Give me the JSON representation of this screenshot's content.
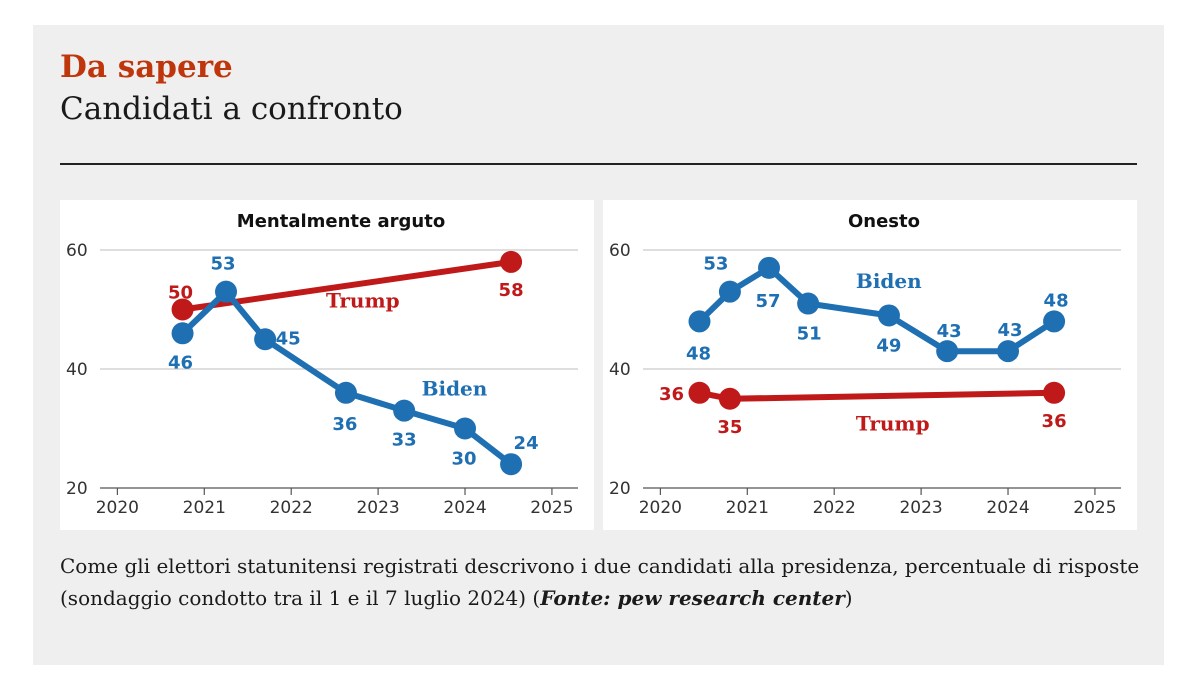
{
  "header": {
    "kicker": "Da sapere",
    "title": "Candidati a confronto"
  },
  "caption": {
    "text": "Come gli elettori statunitensi registrati descrivono i due candidati alla presidenza, percentuale di risposte (sondaggio condotto tra il 1 e il 7 luglio 2024) (",
    "source": "Fonte: pew research center",
    "close": ")"
  },
  "colors": {
    "trump": "#c01919",
    "biden": "#1f6fb3",
    "accent": "#c0360c"
  },
  "chart_data": [
    {
      "type": "line",
      "title": "Mentalmente arguto",
      "x_ticks": [
        2020,
        2021,
        2022,
        2023,
        2024,
        2025
      ],
      "y_ticks": [
        20,
        40,
        60
      ],
      "xlim": [
        2019.8,
        2025.3
      ],
      "ylim": [
        20,
        60
      ],
      "grid": true,
      "series": [
        {
          "name": "Trump",
          "color": "#c01919",
          "points": [
            {
              "x": 2020.75,
              "y": 50,
              "label": "50"
            },
            {
              "x": 2024.53,
              "y": 58,
              "label": "58"
            }
          ]
        },
        {
          "name": "Biden",
          "color": "#1f6fb3",
          "points": [
            {
              "x": 2020.75,
              "y": 46,
              "label": "46"
            },
            {
              "x": 2021.25,
              "y": 53,
              "label": "53"
            },
            {
              "x": 2021.7,
              "y": 45,
              "label": "45"
            },
            {
              "x": 2022.63,
              "y": 36,
              "label": "36"
            },
            {
              "x": 2023.3,
              "y": 33,
              "label": "33"
            },
            {
              "x": 2024.0,
              "y": 30,
              "label": "30"
            },
            {
              "x": 2024.53,
              "y": 24,
              "label": "24"
            }
          ]
        }
      ]
    },
    {
      "type": "line",
      "title": "Onesto",
      "x_ticks": [
        2020,
        2021,
        2022,
        2023,
        2024,
        2025
      ],
      "y_ticks": [
        20,
        40,
        60
      ],
      "xlim": [
        2019.8,
        2025.3
      ],
      "ylim": [
        20,
        60
      ],
      "grid": true,
      "series": [
        {
          "name": "Biden",
          "color": "#1f6fb3",
          "points": [
            {
              "x": 2020.45,
              "y": 48,
              "label": "48"
            },
            {
              "x": 2020.8,
              "y": 53,
              "label": "53"
            },
            {
              "x": 2021.25,
              "y": 57,
              "label": "57"
            },
            {
              "x": 2021.7,
              "y": 51,
              "label": "51"
            },
            {
              "x": 2022.63,
              "y": 49,
              "label": "49"
            },
            {
              "x": 2023.3,
              "y": 43,
              "label": "43"
            },
            {
              "x": 2024.0,
              "y": 43,
              "label": "43"
            },
            {
              "x": 2024.53,
              "y": 48,
              "label": "48"
            }
          ]
        },
        {
          "name": "Trump",
          "color": "#c01919",
          "points": [
            {
              "x": 2020.45,
              "y": 36,
              "label": "36"
            },
            {
              "x": 2020.8,
              "y": 35,
              "label": "35"
            },
            {
              "x": 2024.53,
              "y": 36,
              "label": "36"
            }
          ]
        }
      ]
    }
  ]
}
